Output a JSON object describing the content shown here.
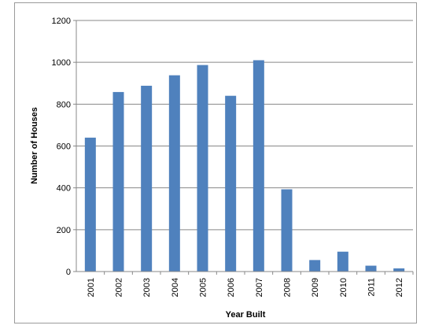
{
  "chart_data": {
    "type": "bar",
    "title": "",
    "xlabel": "Year Built",
    "ylabel": "Number of Houses",
    "categories": [
      "2001",
      "2002",
      "2003",
      "2004",
      "2005",
      "2006",
      "2007",
      "2008",
      "2009",
      "2010",
      "2011",
      "2012"
    ],
    "values": [
      640,
      858,
      888,
      938,
      987,
      840,
      1010,
      393,
      55,
      95,
      28,
      15
    ],
    "ylim": [
      0,
      1200
    ],
    "yticks": [
      0,
      200,
      400,
      600,
      800,
      1000,
      1200
    ],
    "grid": true,
    "bar_color": "#4f81bd",
    "grid_color": "#888888"
  }
}
